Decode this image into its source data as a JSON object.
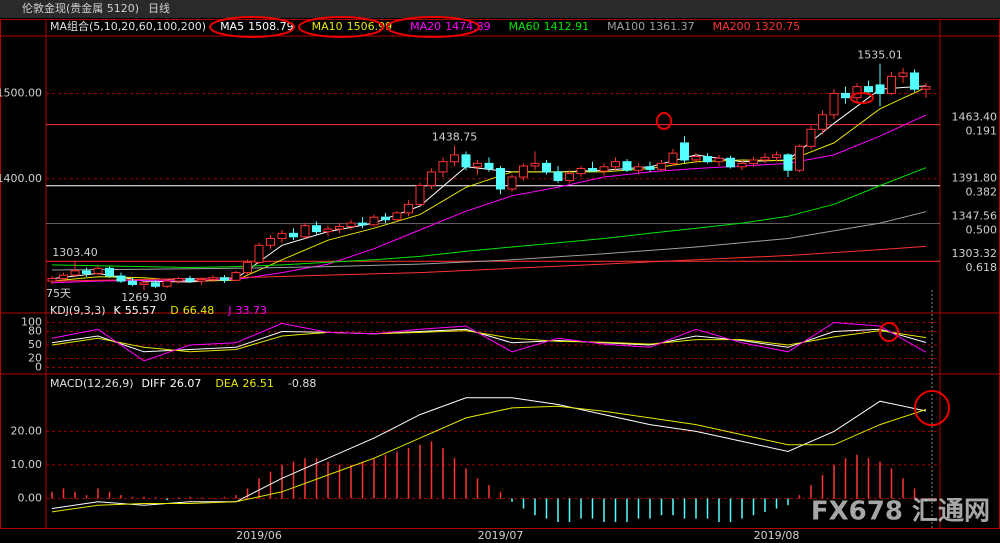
{
  "header": {
    "symbol": "伦敦金现(贵金属 5120)",
    "period": "日线"
  },
  "watermark": "FX678 汇通网",
  "chart_data": [
    {
      "type": "candlestick",
      "legend_title": "MA组合(5,10,20,60,100,200)",
      "note": "75天",
      "categories": [
        null,
        null,
        null,
        null,
        null,
        null,
        null,
        null,
        null,
        null,
        null,
        null,
        null,
        null,
        null,
        null,
        null,
        null,
        "2019/06",
        null,
        null,
        null,
        null,
        null,
        null,
        null,
        null,
        null,
        null,
        null,
        null,
        null,
        null,
        null,
        null,
        null,
        null,
        null,
        null,
        "2019/07",
        null,
        null,
        null,
        null,
        null,
        null,
        null,
        null,
        null,
        null,
        null,
        null,
        null,
        null,
        null,
        null,
        null,
        null,
        null,
        null,
        null,
        null,
        null,
        "2019/08",
        null,
        null,
        null,
        null,
        null,
        null,
        null,
        null,
        null,
        null,
        null,
        null,
        null
      ],
      "open": [
        1280,
        1283,
        1287,
        1292,
        1289,
        1295,
        1286,
        1280,
        1276,
        1278,
        1274,
        1280,
        1283,
        1280,
        1282,
        1284,
        1281,
        1290,
        1302,
        1322,
        1330,
        1336,
        1332,
        1345,
        1338,
        1341,
        1344,
        1348,
        1346,
        1355,
        1352,
        1360,
        1370,
        1392,
        1408,
        1420,
        1428,
        1414,
        1418,
        1412,
        1388,
        1402,
        1415,
        1418,
        1408,
        1398,
        1406,
        1412,
        1409,
        1414,
        1420,
        1410,
        1414,
        1411,
        1418,
        1442,
        1422,
        1426,
        1420,
        1424,
        1414,
        1418,
        1422,
        1425,
        1428,
        1410,
        1438,
        1458,
        1475,
        1500,
        1495,
        1508,
        1510,
        1500,
        1520,
        1524,
        1505
      ],
      "high": [
        1286,
        1290,
        1303.4,
        1296,
        1298,
        1297,
        1290,
        1284,
        1280,
        1281,
        1282,
        1285,
        1286,
        1284,
        1287,
        1287,
        1292,
        1305,
        1325,
        1334,
        1340,
        1342,
        1348,
        1350,
        1345,
        1348,
        1352,
        1355,
        1358,
        1360,
        1362,
        1375,
        1395,
        1412,
        1425,
        1438.75,
        1432,
        1422,
        1425,
        1415,
        1405,
        1418,
        1432,
        1422,
        1415,
        1410,
        1415,
        1420,
        1418,
        1425,
        1423,
        1418,
        1420,
        1422,
        1435,
        1450,
        1430,
        1430,
        1428,
        1427,
        1422,
        1426,
        1430,
        1432,
        1430,
        1440,
        1462,
        1480,
        1505,
        1508,
        1512,
        1515,
        1535.01,
        1525,
        1530,
        1528,
        1512
      ],
      "low": [
        1276,
        1280,
        1285,
        1285,
        1287,
        1284,
        1278,
        1274,
        1269.3,
        1272,
        1272,
        1277,
        1278,
        1276,
        1279,
        1278,
        1280,
        1288,
        1300,
        1318,
        1325,
        1328,
        1330,
        1335,
        1333,
        1336,
        1340,
        1342,
        1344,
        1348,
        1350,
        1356,
        1368,
        1388,
        1402,
        1415,
        1410,
        1405,
        1408,
        1382,
        1385,
        1398,
        1410,
        1405,
        1395,
        1395,
        1402,
        1408,
        1404,
        1410,
        1408,
        1405,
        1408,
        1409,
        1415,
        1418,
        1418,
        1418,
        1415,
        1412,
        1410,
        1414,
        1418,
        1420,
        1402,
        1408,
        1435,
        1452,
        1470,
        1488,
        1490,
        1500,
        1485,
        1498,
        1512,
        1502,
        1495
      ],
      "close": [
        1283,
        1287,
        1292,
        1289,
        1295,
        1286,
        1280,
        1276,
        1278,
        1274,
        1280,
        1283,
        1280,
        1282,
        1284,
        1281,
        1290,
        1302,
        1322,
        1330,
        1336,
        1332,
        1345,
        1338,
        1341,
        1344,
        1348,
        1346,
        1355,
        1352,
        1360,
        1370,
        1392,
        1408,
        1420,
        1428,
        1414,
        1418,
        1412,
        1388,
        1402,
        1415,
        1418,
        1408,
        1398,
        1406,
        1412,
        1409,
        1414,
        1420,
        1410,
        1414,
        1411,
        1418,
        1430,
        1422,
        1426,
        1420,
        1424,
        1414,
        1418,
        1422,
        1425,
        1428,
        1410,
        1438,
        1458,
        1475,
        1500,
        1495,
        1508,
        1502,
        1500,
        1520,
        1524,
        1505,
        1508
      ],
      "up_color": "#ff3232",
      "down_color": "#54ffff",
      "ylim": [
        1252,
        1565
      ],
      "yticks": [
        {
          "value": 1400,
          "label": "1400.00"
        },
        {
          "value": 1500,
          "label": "1500.00"
        }
      ],
      "grid": true,
      "series": [
        {
          "name": "MA5",
          "color": "#ffffff",
          "x": [
            0,
            4,
            8,
            12,
            16,
            20,
            24,
            28,
            32,
            36,
            40,
            44,
            48,
            52,
            56,
            60,
            64,
            68,
            72,
            76
          ],
          "values": [
            1283,
            1289,
            1280,
            1279,
            1283,
            1322,
            1338,
            1348,
            1368,
            1414,
            1408,
            1408,
            1410,
            1414,
            1428,
            1420,
            1422,
            1465,
            1505,
            1508.79
          ]
        },
        {
          "name": "MA10",
          "color": "#e6e600",
          "x": [
            0,
            4,
            8,
            12,
            16,
            20,
            24,
            28,
            32,
            36,
            40,
            44,
            48,
            52,
            56,
            60,
            64,
            68,
            72,
            76
          ],
          "values": [
            1280,
            1285,
            1284,
            1280,
            1281,
            1305,
            1328,
            1342,
            1358,
            1390,
            1408,
            1408,
            1408,
            1412,
            1420,
            1422,
            1421,
            1442,
            1482,
            1506.99
          ]
        },
        {
          "name": "MA20",
          "color": "#ff00ff",
          "x": [
            0,
            4,
            8,
            12,
            16,
            20,
            24,
            28,
            32,
            36,
            40,
            44,
            48,
            52,
            56,
            60,
            64,
            68,
            72,
            76
          ],
          "values": [
            1278,
            1280,
            1281,
            1281,
            1282,
            1290,
            1300,
            1318,
            1340,
            1362,
            1380,
            1390,
            1402,
            1408,
            1412,
            1415,
            1418,
            1428,
            1450,
            1474.89
          ]
        },
        {
          "name": "MA60",
          "color": "#00e600",
          "x": [
            0,
            4,
            8,
            12,
            16,
            20,
            24,
            28,
            32,
            36,
            40,
            44,
            48,
            52,
            56,
            60,
            64,
            68,
            72,
            76
          ],
          "values": [
            1299,
            1298,
            1297,
            1296,
            1297,
            1299,
            1302,
            1305,
            1309,
            1315,
            1320,
            1325,
            1330,
            1336,
            1342,
            1348,
            1356,
            1370,
            1392,
            1412.91
          ]
        },
        {
          "name": "MA100",
          "color": "#a0a0a0",
          "x": [
            0,
            8,
            16,
            24,
            32,
            40,
            48,
            56,
            64,
            72,
            76
          ],
          "values": [
            1293,
            1294,
            1295,
            1297,
            1300,
            1305,
            1312,
            1320,
            1330,
            1348,
            1361.37
          ]
        },
        {
          "name": "MA200",
          "color": "#ff3232",
          "x": [
            0,
            8,
            16,
            24,
            32,
            40,
            48,
            56,
            64,
            72,
            76
          ],
          "values": [
            1280,
            1282,
            1284,
            1287,
            1290,
            1295,
            1300,
            1305,
            1310,
            1317,
            1320.75
          ]
        }
      ],
      "levels": [
        {
          "price": {
            "value": 1463.4,
            "label": "1463.40"
          },
          "ratio": 0.191,
          "color": "#ff3232"
        },
        {
          "price": {
            "value": 1391.8,
            "label": "1391.80"
          },
          "ratio": 0.382,
          "color": "#ffffff"
        },
        {
          "price": 1347.56,
          "ratio": {
            "value": 0.5,
            "label": "0.500"
          },
          "color": "#606060"
        },
        {
          "price": 1303.32,
          "ratio": 0.618,
          "color": "#ff3232"
        }
      ],
      "annotations": [
        {
          "x": 72,
          "value": 1535.01,
          "color": "#ff3232",
          "side": "high"
        },
        {
          "x": 35,
          "value": 1438.75,
          "color": "#ff3232",
          "side": "high"
        },
        {
          "x": 2,
          "value": {
            "value": 1303.4,
            "label": "1303.40"
          },
          "color": "#ff3232",
          "side": "high"
        },
        {
          "x": 8,
          "value": {
            "value": 1269.3,
            "label": "1269.30"
          },
          "color": "#54ffff",
          "side": "low"
        }
      ]
    },
    {
      "type": "line",
      "title": "KDJ(9,3,3)",
      "ylim": [
        -10,
        110
      ],
      "yticks": [
        100,
        80,
        50,
        20,
        0
      ],
      "grid": true,
      "series": [
        {
          "name": "K",
          "color": "#ffffff",
          "x": [
            0,
            4,
            8,
            12,
            16,
            20,
            24,
            28,
            32,
            36,
            40,
            44,
            48,
            52,
            56,
            60,
            64,
            68,
            72,
            76
          ],
          "values": [
            55,
            70,
            35,
            40,
            45,
            80,
            78,
            75,
            80,
            85,
            55,
            60,
            55,
            50,
            70,
            60,
            45,
            80,
            85,
            55.57
          ]
        },
        {
          "name": "D",
          "color": "#e6e600",
          "x": [
            0,
            4,
            8,
            12,
            16,
            20,
            24,
            28,
            32,
            36,
            40,
            44,
            48,
            52,
            56,
            60,
            64,
            68,
            72,
            76
          ],
          "values": [
            50,
            65,
            45,
            35,
            40,
            70,
            78,
            75,
            78,
            82,
            65,
            58,
            56,
            52,
            62,
            62,
            50,
            68,
            82,
            66.48
          ]
        },
        {
          "name": "J",
          "color": "#ff00ff",
          "x": [
            0,
            4,
            8,
            12,
            16,
            20,
            24,
            28,
            32,
            36,
            40,
            44,
            48,
            52,
            56,
            60,
            64,
            68,
            72,
            76
          ],
          "values": [
            65,
            85,
            15,
            50,
            55,
            98,
            78,
            75,
            85,
            92,
            35,
            65,
            52,
            45,
            85,
            55,
            35,
            100,
            92,
            33.73
          ]
        }
      ]
    },
    {
      "type": "macd",
      "title": "MACD(12,26,9)",
      "ylim": [
        -8.8,
        35.9
      ],
      "yticks": [
        {
          "value": 20,
          "label": "20.00"
        },
        {
          "value": 10,
          "label": "10.00"
        },
        {
          "value": 0,
          "label": "0.00"
        }
      ],
      "grid": true,
      "series": [
        {
          "name": "DIFF",
          "color": "#ffffff",
          "x": [
            0,
            4,
            8,
            12,
            16,
            20,
            24,
            28,
            32,
            36,
            40,
            44,
            48,
            52,
            56,
            60,
            64,
            68,
            72,
            76
          ],
          "values": [
            -3,
            -1,
            -2,
            -1,
            -1,
            6,
            12,
            18,
            25,
            30,
            30,
            28,
            25,
            22,
            20,
            17,
            14,
            20,
            29,
            26.07
          ]
        },
        {
          "name": "DEA",
          "color": "#e6e600",
          "x": [
            0,
            4,
            8,
            12,
            16,
            20,
            24,
            28,
            32,
            36,
            40,
            44,
            48,
            52,
            56,
            60,
            64,
            68,
            72,
            76
          ],
          "values": [
            -4,
            -2,
            -1.5,
            -1.5,
            -1,
            2,
            7,
            12,
            18,
            24,
            27,
            27.5,
            26,
            24,
            22,
            19,
            16,
            16,
            22,
            26.51
          ]
        }
      ],
      "histogram": {
        "up_color": "#ff3232",
        "down_color": "#54ffff",
        "values": [
          2,
          3,
          2,
          1,
          3,
          2,
          1,
          0.5,
          0.5,
          0.3,
          -0.5,
          0.3,
          0.5,
          0.3,
          0.2,
          0.5,
          1,
          3,
          6,
          8,
          10,
          11,
          12,
          12,
          11,
          10,
          10,
          11,
          12,
          13,
          14,
          15,
          16,
          17,
          15,
          12,
          9,
          6,
          4,
          2,
          -1,
          -3,
          -5,
          -6,
          -7,
          -7,
          -6,
          -6,
          -7,
          -7,
          -7,
          -6,
          -6,
          -5,
          -5,
          -6,
          -6,
          -6,
          -7,
          -7,
          -6,
          -5,
          -4,
          -3,
          -2,
          1,
          4,
          7,
          10,
          12,
          13,
          12,
          11,
          9,
          6,
          3,
          -0.88
        ]
      }
    }
  ]
}
